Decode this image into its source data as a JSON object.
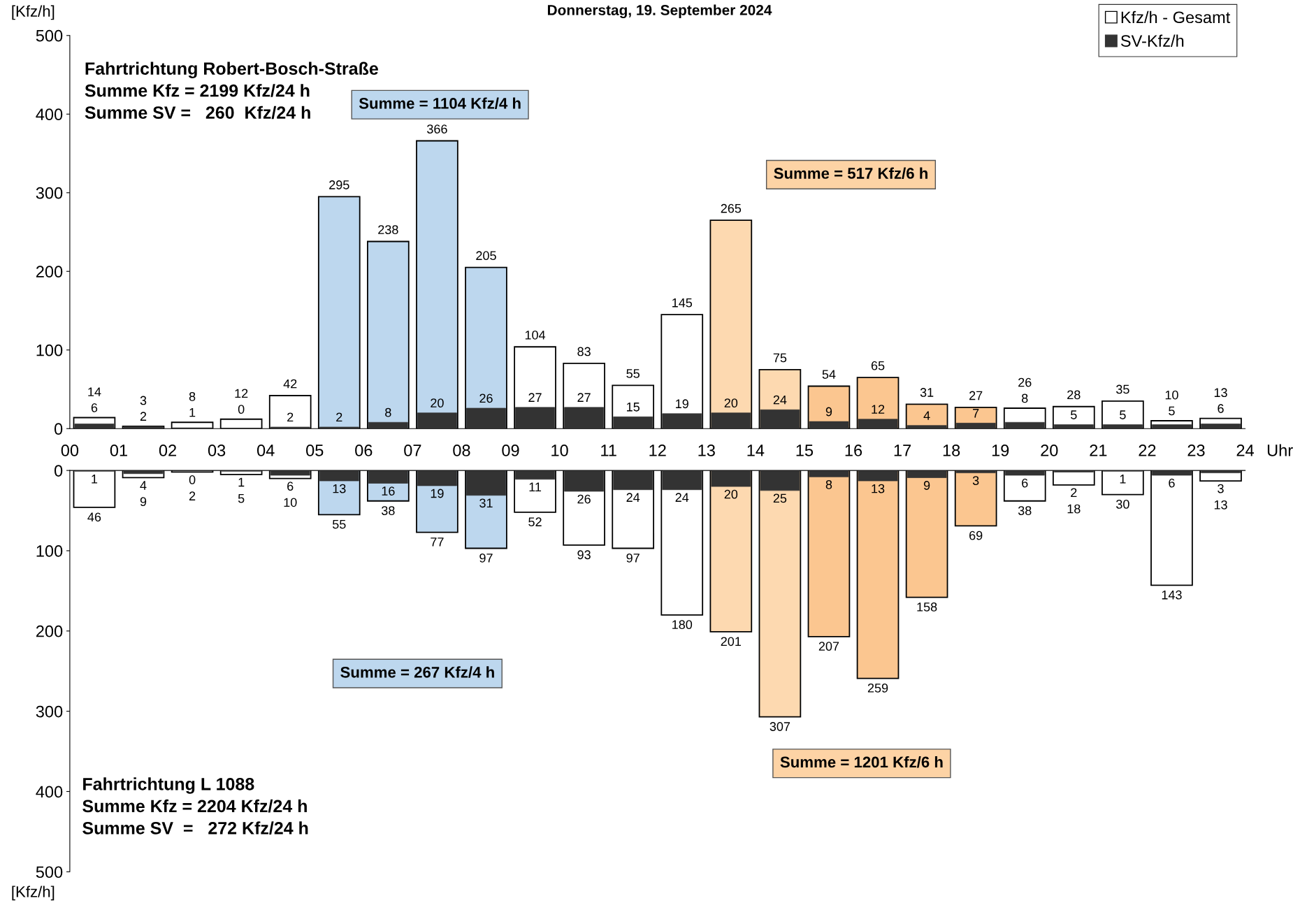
{
  "chart_data": [
    {
      "type": "bar",
      "title": "Donnerstag, 19. September 2024",
      "ylabel": "[Kfz/h]",
      "xlabel": "Uhr",
      "x": [
        0.5,
        1.5,
        2.5,
        3.5,
        4.5,
        5.5,
        6.5,
        7.5,
        8.5,
        9.5,
        10.5,
        11.5,
        12.5,
        13.5,
        14.5,
        15.5,
        16.5,
        17.5,
        18.5,
        19.5,
        20.5,
        21.5,
        22.5,
        23.5
      ],
      "series": [
        {
          "name": "Kfz/h - Gesamt",
          "type": "bar",
          "values": [
            14,
            3,
            8,
            12,
            42,
            295,
            238,
            366,
            205,
            104,
            83,
            55,
            145,
            265,
            75,
            54,
            65,
            31,
            27,
            26,
            28,
            35,
            10,
            13
          ],
          "colors": [
            "#ffffff",
            "#ffffff",
            "#ffffff",
            "#ffffff",
            "#ffffff",
            "#bdd7ee",
            "#bdd7ee",
            "#bdd7ee",
            "#bdd7ee",
            "#ffffff",
            "#ffffff",
            "#ffffff",
            "#ffffff",
            "#fdd9b0",
            "#fdd9b0",
            "#fbc690",
            "#fbc690",
            "#fbc690",
            "#fbc690",
            "#ffffff",
            "#ffffff",
            "#ffffff",
            "#ffffff",
            "#ffffff"
          ]
        },
        {
          "name": "SV-Kfz/h",
          "type": "bar",
          "color": "#333333",
          "values": [
            6,
            2,
            1,
            0,
            2,
            2,
            8,
            20,
            26,
            27,
            27,
            15,
            19,
            20,
            24,
            9,
            12,
            4,
            7,
            8,
            5,
            5,
            5,
            6
          ]
        }
      ],
      "xlim": [
        0,
        24
      ],
      "ylim": [
        0,
        500
      ],
      "yticks": [
        0,
        100,
        200,
        300,
        400,
        500
      ],
      "xticks": [
        {
          "value": 0,
          "label": "00"
        },
        {
          "value": 1,
          "label": "01"
        },
        {
          "value": 2,
          "label": "02"
        },
        {
          "value": 3,
          "label": "03"
        },
        {
          "value": 4,
          "label": "04"
        },
        {
          "value": 5,
          "label": "05"
        },
        {
          "value": 6,
          "label": "06"
        },
        {
          "value": 7,
          "label": "07"
        },
        {
          "value": 8,
          "label": "08"
        },
        {
          "value": 9,
          "label": "09"
        },
        {
          "value": 10,
          "label": "10"
        },
        {
          "value": 11,
          "label": "11"
        },
        {
          "value": 12,
          "label": "12"
        },
        {
          "value": 13,
          "label": "13"
        },
        {
          "value": 14,
          "label": "14"
        },
        {
          "value": 15,
          "label": "15"
        },
        {
          "value": 16,
          "label": "16"
        },
        {
          "value": 17,
          "label": "17"
        },
        {
          "value": 18,
          "label": "18"
        },
        {
          "value": 19,
          "label": "19"
        },
        {
          "value": 20,
          "label": "20"
        },
        {
          "value": 21,
          "label": "21"
        },
        {
          "value": 22,
          "label": "22"
        },
        {
          "value": 23,
          "label": "23"
        },
        {
          "value": 24,
          "label": "24"
        }
      ],
      "data_labels": true,
      "legend": "top right",
      "grid": false,
      "annotations": [
        "Fahrtrichtung Robert-Bosch-Straße\nSumme Kfz = 2199 Kfz/24 h\nSumme SV =   260  Kfz/24 h",
        "Summe = 1104 Kfz/4 h",
        "Summe = 517 Kfz/6 h"
      ]
    },
    {
      "type": "bar",
      "ylabel": "[Kfz/h]",
      "x": [
        0.5,
        1.5,
        2.5,
        3.5,
        4.5,
        5.5,
        6.5,
        7.5,
        8.5,
        9.5,
        10.5,
        11.5,
        12.5,
        13.5,
        14.5,
        15.5,
        16.5,
        17.5,
        18.5,
        19.5,
        20.5,
        21.5,
        22.5,
        23.5
      ],
      "series": [
        {
          "type": "bar",
          "values": [
            46,
            9,
            2,
            5,
            10,
            55,
            38,
            77,
            97,
            52,
            93,
            97,
            180,
            201,
            307,
            207,
            259,
            158,
            69,
            38,
            18,
            30,
            143,
            13
          ],
          "colors": [
            "#ffffff",
            "#ffffff",
            "#ffffff",
            "#ffffff",
            "#ffffff",
            "#bdd7ee",
            "#bdd7ee",
            "#bdd7ee",
            "#bdd7ee",
            "#ffffff",
            "#ffffff",
            "#ffffff",
            "#ffffff",
            "#fdd9b0",
            "#fdd9b0",
            "#fbc690",
            "#fbc690",
            "#fbc690",
            "#fbc690",
            "#ffffff",
            "#ffffff",
            "#ffffff",
            "#ffffff",
            "#ffffff"
          ]
        },
        {
          "type": "bar",
          "color": "#333333",
          "values": [
            1,
            4,
            0,
            1,
            6,
            13,
            16,
            19,
            31,
            11,
            26,
            24,
            24,
            20,
            25,
            8,
            13,
            9,
            3,
            6,
            2,
            1,
            6,
            3
          ]
        }
      ],
      "xlim": [
        0,
        24
      ],
      "ylim": [
        500,
        0
      ],
      "yticks": [
        0,
        100,
        200,
        300,
        400,
        500
      ],
      "tick_labels": "y",
      "data_labels": true,
      "grid": false,
      "annotations": [
        "Summe = 267 Kfz/4 h",
        "Summe = 1201 Kfz/6 h",
        "Fahrtrichtung L 1088\nSumme Kfz = 2204 Kfz/24 h\nSumme SV  =   272 Kfz/24 h"
      ]
    }
  ]
}
